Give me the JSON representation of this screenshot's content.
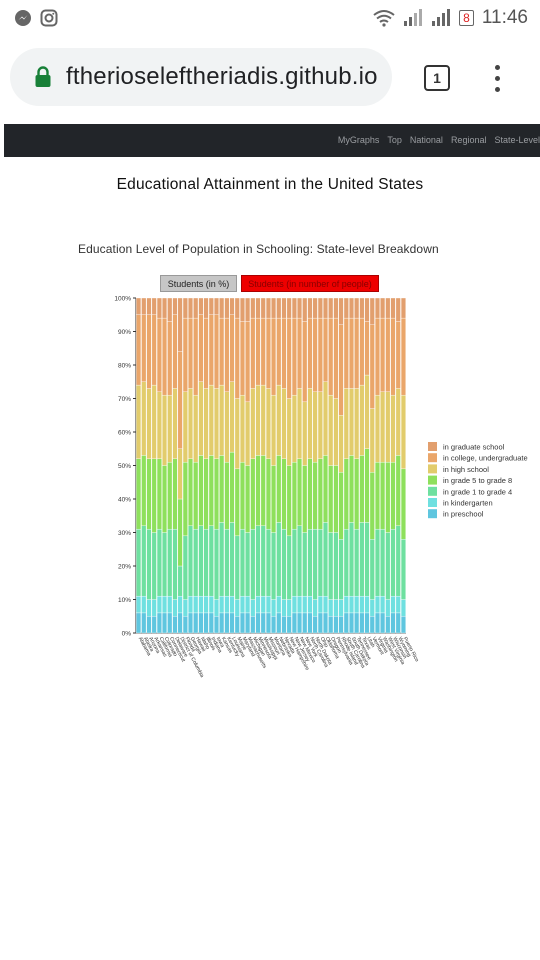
{
  "status_bar": {
    "time": "11:46",
    "battery": "8"
  },
  "browser": {
    "url": "ftherioseleftheriadis.github.io",
    "tab_count": "1"
  },
  "navbar": {
    "links": [
      "MyGraphs",
      "Top",
      "National",
      "Regional",
      "State-Level"
    ]
  },
  "page": {
    "title": "Educational Attainment in the United States",
    "chart_title": "Education Level of Population in Schooling: State-level Breakdown",
    "buttons": {
      "percent": "Students (in %)",
      "number": "Students (in number of people)"
    }
  },
  "chart_data": {
    "type": "bar",
    "stacked": true,
    "title": "Education Level of Population in Schooling: State-level Breakdown",
    "ylim": [
      0,
      100
    ],
    "yticks": [
      "0%",
      "10%",
      "20%",
      "30%",
      "40%",
      "50%",
      "60%",
      "70%",
      "80%",
      "90%",
      "100%"
    ],
    "legend_position": "right",
    "categories": [
      "Alabama",
      "Alaska",
      "Arizona",
      "Arkansas",
      "California",
      "Colorado",
      "Connecticut",
      "Delaware",
      "District of Columbia",
      "Florida",
      "Georgia",
      "Hawaii",
      "Idaho",
      "Illinois",
      "Indiana",
      "Iowa",
      "Kansas",
      "Kentucky",
      "Louisiana",
      "Maine",
      "Maryland",
      "Massachusetts",
      "Michigan",
      "Minnesota",
      "Mississippi",
      "Missouri",
      "Montana",
      "Nebraska",
      "Nevada",
      "New Hampshire",
      "New Jersey",
      "New Mexico",
      "New York",
      "North Carolina",
      "North Dakota",
      "Ohio",
      "Oklahoma",
      "Oregon",
      "Pennsylvania",
      "Rhode Island",
      "South Carolina",
      "South Dakota",
      "Tennessee",
      "Texas",
      "Utah",
      "Vermont",
      "Virginia",
      "Washington",
      "West Virginia",
      "Wisconsin",
      "Wyoming",
      "Puerto Rico"
    ],
    "series": [
      {
        "name": "in preschool",
        "color": "#5fc6df",
        "values": [
          6,
          6,
          5,
          5,
          6,
          6,
          6,
          5,
          6,
          5,
          6,
          6,
          6,
          6,
          6,
          5,
          6,
          6,
          6,
          5,
          6,
          6,
          5,
          6,
          6,
          6,
          5,
          6,
          5,
          5,
          6,
          6,
          6,
          6,
          5,
          6,
          6,
          5,
          5,
          5,
          6,
          6,
          6,
          6,
          6,
          5,
          6,
          6,
          5,
          6,
          6,
          5
        ]
      },
      {
        "name": "in kindergarten",
        "color": "#6fe0e0",
        "values": [
          5,
          5,
          5,
          5,
          5,
          5,
          5,
          5,
          5,
          5,
          5,
          5,
          5,
          5,
          5,
          5,
          5,
          5,
          5,
          5,
          5,
          5,
          5,
          5,
          5,
          5,
          5,
          5,
          5,
          5,
          5,
          5,
          5,
          5,
          5,
          5,
          5,
          5,
          5,
          5,
          5,
          5,
          5,
          5,
          5,
          5,
          5,
          5,
          5,
          5,
          5,
          5
        ]
      },
      {
        "name": "in grade 1 to grade 4",
        "color": "#6ee0a0",
        "values": [
          20,
          21,
          21,
          20,
          20,
          19,
          20,
          21,
          9,
          19,
          21,
          20,
          21,
          20,
          21,
          21,
          22,
          20,
          22,
          19,
          20,
          19,
          21,
          21,
          21,
          20,
          20,
          22,
          21,
          19,
          20,
          21,
          19,
          20,
          21,
          20,
          22,
          20,
          20,
          18,
          20,
          22,
          20,
          22,
          22,
          18,
          20,
          20,
          20,
          20,
          21,
          18
        ]
      },
      {
        "name": "in grade 5 to grade 8",
        "color": "#8ee05c",
        "values": [
          21,
          21,
          21,
          22,
          21,
          20,
          20,
          21,
          20,
          22,
          20,
          20,
          21,
          21,
          21,
          21,
          20,
          20,
          21,
          20,
          20,
          20,
          21,
          21,
          21,
          21,
          20,
          20,
          21,
          21,
          20,
          20,
          20,
          21,
          20,
          21,
          20,
          20,
          20,
          20,
          21,
          20,
          21,
          20,
          22,
          20,
          20,
          20,
          21,
          20,
          21,
          21
        ]
      },
      {
        "name": "in high school",
        "color": "#e2cc6c",
        "values": [
          22,
          22,
          21,
          22,
          20,
          21,
          20,
          21,
          15,
          21,
          21,
          20,
          22,
          21,
          21,
          21,
          21,
          21,
          21,
          21,
          20,
          19,
          21,
          21,
          21,
          21,
          21,
          21,
          21,
          20,
          20,
          21,
          19,
          21,
          21,
          20,
          22,
          21,
          20,
          17,
          21,
          20,
          21,
          21,
          22,
          19,
          20,
          21,
          21,
          20,
          20,
          22
        ]
      },
      {
        "name": "in college, undergraduate",
        "color": "#eaa66a",
        "values": [
          21,
          20,
          22,
          21,
          22,
          23,
          22,
          22,
          29,
          22,
          21,
          23,
          20,
          21,
          21,
          22,
          20,
          22,
          20,
          24,
          22,
          24,
          21,
          20,
          20,
          21,
          23,
          20,
          21,
          24,
          23,
          21,
          24,
          21,
          22,
          22,
          19,
          23,
          24,
          27,
          21,
          21,
          21,
          20,
          16,
          25,
          23,
          22,
          22,
          23,
          20,
          23
        ]
      },
      {
        "name": "in graduate school",
        "color": "#e29f6e",
        "values": [
          5,
          5,
          5,
          5,
          6,
          6,
          7,
          5,
          16,
          6,
          6,
          6,
          5,
          6,
          5,
          5,
          6,
          6,
          5,
          6,
          7,
          7,
          6,
          6,
          6,
          6,
          6,
          6,
          6,
          6,
          6,
          6,
          7,
          6,
          6,
          6,
          6,
          6,
          6,
          8,
          6,
          6,
          6,
          6,
          7,
          8,
          6,
          6,
          6,
          6,
          7,
          6
        ]
      }
    ]
  }
}
